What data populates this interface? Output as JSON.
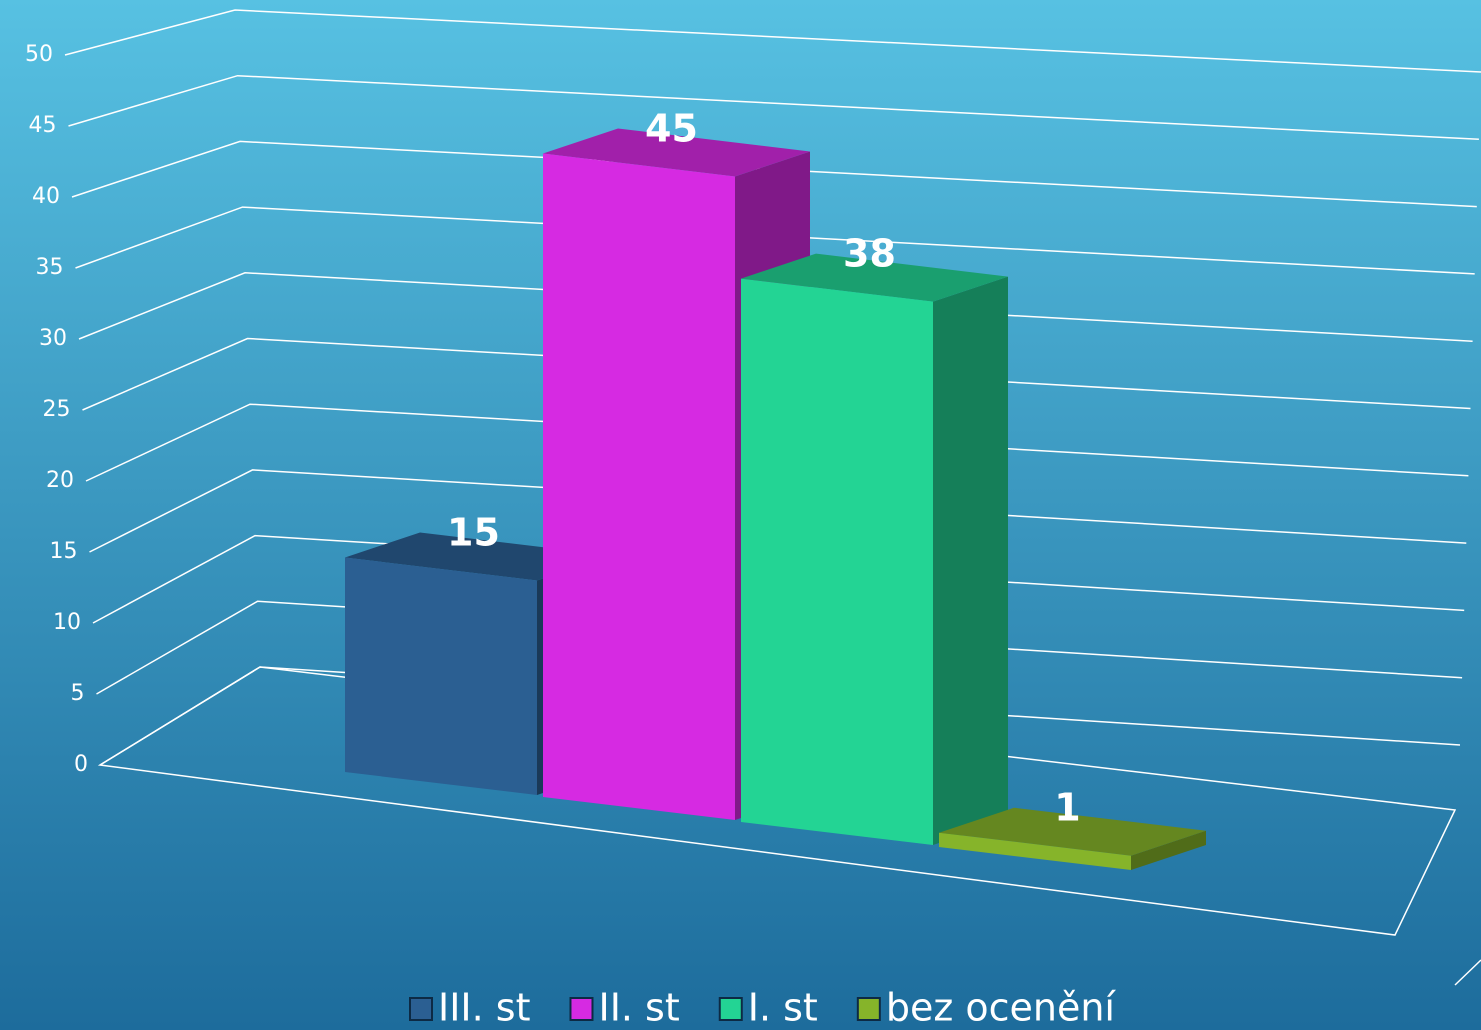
{
  "chart_data": {
    "type": "bar3d",
    "categories": [
      null
    ],
    "series": [
      {
        "name": "III. st",
        "color": "#2b5f92",
        "values": [
          15
        ]
      },
      {
        "name": "II. st",
        "color": "#d62ae2",
        "values": [
          45
        ]
      },
      {
        "name": "I. st",
        "color": "#23d494",
        "values": [
          38
        ]
      },
      {
        "name": "bez ocenění",
        "color": "#86b42a",
        "values": [
          1
        ]
      }
    ],
    "ylim": [
      0,
      50
    ],
    "yticks": [
      0,
      5,
      10,
      15,
      20,
      25,
      30,
      35,
      40,
      45,
      50
    ],
    "grid": true,
    "legend": "bottom"
  }
}
